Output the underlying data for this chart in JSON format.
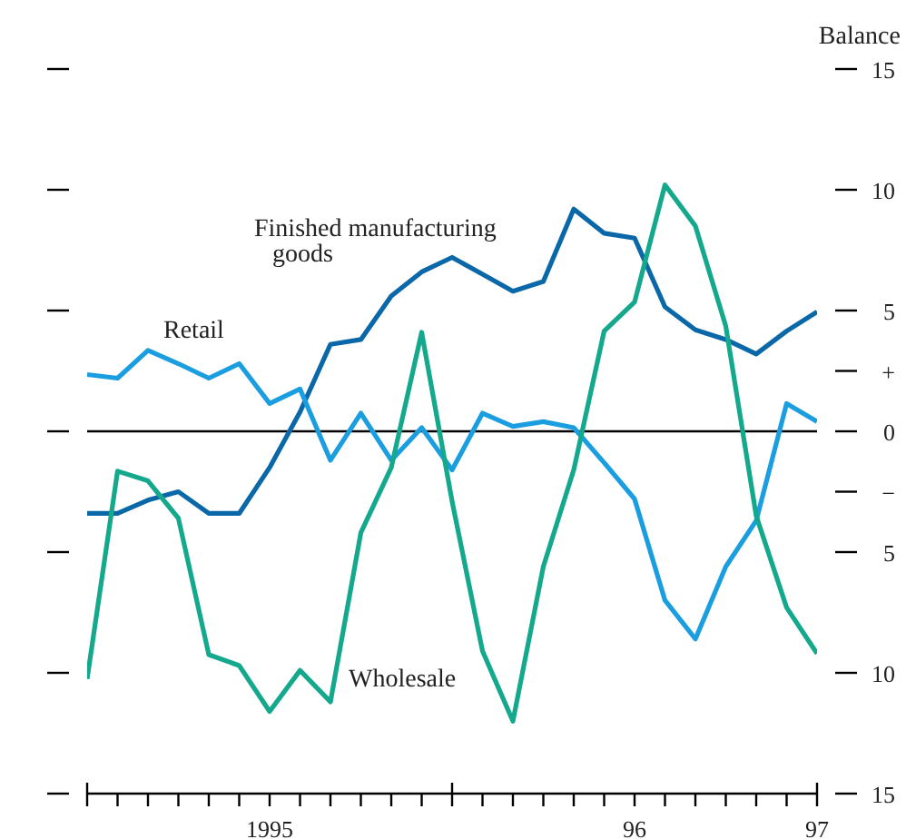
{
  "chart_data": {
    "type": "line",
    "ylabel": "Balance",
    "x": [
      "1995-01",
      "1995-02",
      "1995-03",
      "1995-04",
      "1995-05",
      "1995-06",
      "1995-07",
      "1995-08",
      "1995-09",
      "1995-10",
      "1995-11",
      "1995-12",
      "1996-01",
      "1996-02",
      "1996-03",
      "1996-04",
      "1996-05",
      "1996-06",
      "1996-07",
      "1996-08",
      "1996-09",
      "1996-10",
      "1996-11",
      "1996-12",
      "1997-01"
    ],
    "series": [
      {
        "name": "Finished manufacturing goods",
        "color": "#0b68a8",
        "values": [
          -3.4,
          -3.4,
          -2.85,
          -2.5,
          -3.4,
          -3.4,
          -1.5,
          0.8,
          3.6,
          3.8,
          5.6,
          6.6,
          7.2,
          6.5,
          5.8,
          6.2,
          9.2,
          8.2,
          8.0,
          5.15,
          4.2,
          3.8,
          3.2,
          4.15,
          4.95
        ]
      },
      {
        "name": "Retail",
        "color": "#1a9ee0",
        "values": [
          2.35,
          2.2,
          3.35,
          2.8,
          2.2,
          2.8,
          1.15,
          1.75,
          -1.2,
          0.75,
          -1.2,
          0.15,
          -1.6,
          0.75,
          0.2,
          0.4,
          0.15,
          -1.3,
          -2.8,
          -7.0,
          -8.6,
          -5.6,
          -3.7,
          1.15,
          0.4
        ]
      },
      {
        "name": "Wholesale",
        "color": "#14a88c",
        "values": [
          -10.25,
          -1.65,
          -2.05,
          -3.6,
          -9.25,
          -9.7,
          -11.6,
          -9.9,
          -11.2,
          -4.2,
          -1.5,
          4.1,
          -2.9,
          -9.1,
          -12.0,
          -5.6,
          -1.6,
          4.15,
          5.35,
          10.2,
          8.5,
          4.35,
          -3.5,
          -7.3,
          -9.2
        ]
      }
    ],
    "xlim": [
      "1995-01",
      "1997-01"
    ],
    "xticks": [
      {
        "value": "1995-01",
        "label": null
      },
      {
        "value": "1995-02",
        "label": null
      },
      {
        "value": "1995-03",
        "label": null
      },
      {
        "value": "1995-04",
        "label": null
      },
      {
        "value": "1995-05",
        "label": null
      },
      {
        "value": "1995-06",
        "label": null
      },
      {
        "value": "1995-07",
        "label": "1995"
      },
      {
        "value": "1995-08",
        "label": null
      },
      {
        "value": "1995-09",
        "label": null
      },
      {
        "value": "1995-10",
        "label": null
      },
      {
        "value": "1995-11",
        "label": null
      },
      {
        "value": "1995-12",
        "label": null
      },
      {
        "value": "1996-01",
        "label": null
      },
      {
        "value": "1996-02",
        "label": null
      },
      {
        "value": "1996-03",
        "label": null
      },
      {
        "value": "1996-04",
        "label": null
      },
      {
        "value": "1996-05",
        "label": null
      },
      {
        "value": "1996-06",
        "label": null
      },
      {
        "value": "1996-07",
        "label": "96"
      },
      {
        "value": "1996-08",
        "label": null
      },
      {
        "value": "1996-09",
        "label": null
      },
      {
        "value": "1996-10",
        "label": null
      },
      {
        "value": "1996-11",
        "label": null
      },
      {
        "value": "1996-12",
        "label": null
      },
      {
        "value": "1997-01",
        "label": "97"
      }
    ],
    "ylim": [
      -15,
      15
    ],
    "yticks": [
      {
        "value": 15,
        "label": "15"
      },
      {
        "value": 10,
        "label": "10"
      },
      {
        "value": 5,
        "label": "5"
      },
      {
        "value": 2.5,
        "label": "+"
      },
      {
        "value": 0,
        "label": "0"
      },
      {
        "value": -2.5,
        "label": "−"
      },
      {
        "value": -5,
        "label": "5"
      },
      {
        "value": -10,
        "label": "10"
      },
      {
        "value": -15,
        "label": "15"
      }
    ],
    "ref_lines": [
      {
        "axis": "y",
        "value": 0,
        "color": "#000000"
      }
    ],
    "grid": false,
    "legend": false
  }
}
